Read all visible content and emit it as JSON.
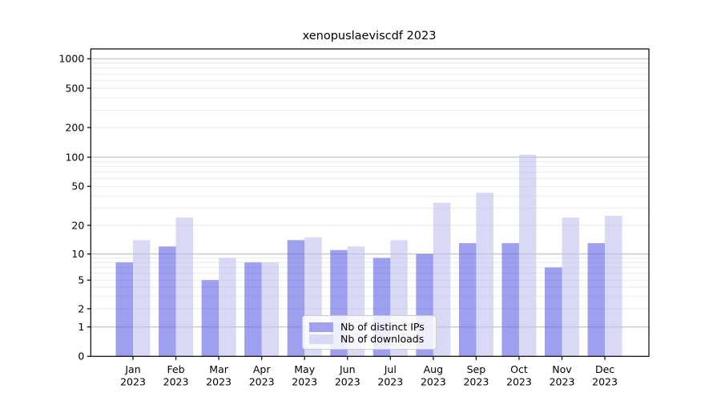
{
  "figure": {
    "title": "xenopuslaeviscdf 2023"
  },
  "chart_data": {
    "type": "bar",
    "title": "xenopuslaeviscdf 2023",
    "categories": [
      "Jan 2023",
      "Feb 2023",
      "Mar 2023",
      "Apr 2023",
      "May 2023",
      "Jun 2023",
      "Jul 2023",
      "Aug 2023",
      "Sep 2023",
      "Oct 2023",
      "Nov 2023",
      "Dec 2023"
    ],
    "month_labels": [
      "Jan",
      "Feb",
      "Mar",
      "Apr",
      "May",
      "Jun",
      "Jul",
      "Aug",
      "Sep",
      "Oct",
      "Nov",
      "Dec"
    ],
    "year_label": "2023",
    "series": [
      {
        "name": "Nb of distinct IPs",
        "values": [
          8,
          12,
          5,
          8,
          14,
          11,
          9,
          10,
          13,
          13,
          7,
          13
        ],
        "color": "#a1a1ee",
        "fill": "rgba(100,100,230,0.62)"
      },
      {
        "name": "Nb of downloads",
        "values": [
          14,
          24,
          9,
          8,
          15,
          12,
          14,
          34,
          43,
          106,
          24,
          25
        ],
        "color": "#d9d9f6",
        "fill": "rgba(194,194,241,0.62)"
      }
    ],
    "yticks": [
      0,
      1,
      2,
      5,
      10,
      20,
      50,
      100,
      200,
      500,
      1000
    ],
    "yscale": "symlog",
    "ylim": [
      0,
      1400
    ],
    "xlabel": "",
    "ylabel": "",
    "grid": true,
    "legend": {
      "entries": [
        "Nb of distinct IPs",
        "Nb of downloads"
      ],
      "position": "lower-center-inside"
    },
    "colors": {
      "major_grid": "#b5b5b5",
      "minor_grid": "#e8e8e8",
      "frame": "#000000",
      "text": "#000000"
    }
  }
}
